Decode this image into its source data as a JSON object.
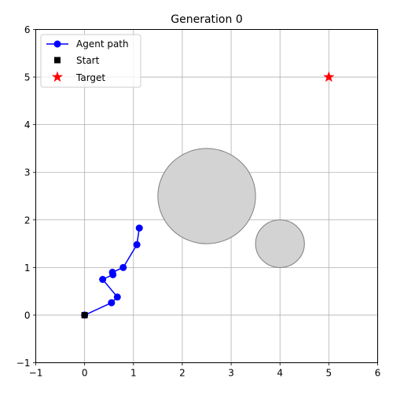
{
  "chart_data": {
    "type": "line",
    "title": "Generation 0",
    "xlabel": "",
    "ylabel": "",
    "xlim": [
      -1,
      6
    ],
    "ylim": [
      -1,
      6
    ],
    "xticks": [
      -1,
      0,
      1,
      2,
      3,
      4,
      5,
      6
    ],
    "yticks": [
      -1,
      0,
      1,
      2,
      3,
      4,
      5,
      6
    ],
    "grid": true,
    "legend_position": "upper-left",
    "series": [
      {
        "name": "Agent path",
        "color": "#0000ff",
        "marker": "circle",
        "x": [
          0,
          0.55,
          0.67,
          0.37,
          0.58,
          0.57,
          0.79,
          1.07,
          1.12
        ],
        "y": [
          0,
          0.26,
          0.38,
          0.75,
          0.85,
          0.9,
          1.0,
          1.48,
          1.83
        ]
      }
    ],
    "start": {
      "name": "Start",
      "x": 0,
      "y": 0,
      "color": "#000000",
      "marker": "square"
    },
    "target": {
      "name": "Target",
      "x": 5,
      "y": 5,
      "color": "#ff0000",
      "marker": "star"
    },
    "obstacles": [
      {
        "cx": 2.5,
        "cy": 2.5,
        "r": 1.0,
        "fill": "#d3d3d3",
        "stroke": "#808080"
      },
      {
        "cx": 4.0,
        "cy": 1.5,
        "r": 0.5,
        "fill": "#d3d3d3",
        "stroke": "#808080"
      }
    ]
  }
}
